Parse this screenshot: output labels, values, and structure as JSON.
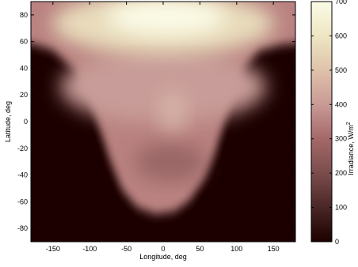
{
  "chart_data": {
    "type": "heatmap",
    "xlabel": "Longitude, deg",
    "ylabel": "Latitude, deg",
    "colorbar_label": "Irradiance, W/m",
    "colorbar_label_superscript": "2",
    "xlim": [
      -180,
      180
    ],
    "ylim": [
      -90,
      90
    ],
    "x_ticks": [
      -150,
      -100,
      -50,
      0,
      50,
      100,
      150
    ],
    "y_ticks": [
      -80,
      -60,
      -40,
      -20,
      0,
      20,
      40,
      60,
      80
    ],
    "colorbar_range": [
      0,
      700
    ],
    "colorbar_ticks": [
      0,
      100,
      200,
      300,
      400,
      500,
      600,
      700
    ],
    "colormap": [
      "#1c0000",
      "#4a2626",
      "#7b4d4d",
      "#a46868",
      "#c99a95",
      "#dfc2aa",
      "#ede6c3",
      "#fbfbe6"
    ],
    "grid": false,
    "description_data": {
      "illuminated_region_lower_edge_lat": [
        [
          -180,
          60
        ],
        [
          -150,
          55
        ],
        [
          -120,
          40
        ],
        [
          -100,
          20
        ],
        [
          -85,
          -5
        ],
        [
          -70,
          -30
        ],
        [
          -55,
          -50
        ],
        [
          -35,
          -63
        ],
        [
          -10,
          -68
        ],
        [
          15,
          -66
        ],
        [
          35,
          -58
        ],
        [
          55,
          -42
        ],
        [
          70,
          -22
        ],
        [
          82,
          0
        ],
        [
          95,
          22
        ],
        [
          110,
          42
        ],
        [
          130,
          55
        ],
        [
          160,
          59
        ],
        [
          180,
          60
        ]
      ],
      "peak_irradiance_location": [
        0,
        75
      ],
      "peak_irradiance": 700
    }
  }
}
